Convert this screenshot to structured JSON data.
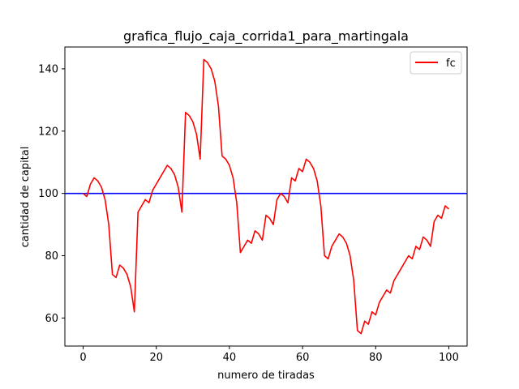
{
  "chart_data": {
    "type": "line",
    "title": "grafica_flujo_caja_corrida1_para_martingala",
    "xlabel": "numero de tiradas",
    "ylabel": "cantidad de capital",
    "xlim": [
      -5,
      105
    ],
    "ylim": [
      51,
      147
    ],
    "xticks": [
      0,
      20,
      40,
      60,
      80,
      100
    ],
    "yticks": [
      60,
      80,
      100,
      120,
      140
    ],
    "grid": false,
    "legend_position": "top-right",
    "reference_line": {
      "y": 100,
      "color": "#0000ff"
    },
    "series": [
      {
        "name": "fc",
        "color": "#ff0000",
        "x": [
          0,
          1,
          2,
          3,
          4,
          5,
          6,
          7,
          8,
          9,
          10,
          11,
          12,
          13,
          14,
          15,
          16,
          17,
          18,
          19,
          20,
          21,
          22,
          23,
          24,
          25,
          26,
          27,
          28,
          29,
          30,
          31,
          32,
          33,
          34,
          35,
          36,
          37,
          38,
          39,
          40,
          41,
          42,
          43,
          44,
          45,
          46,
          47,
          48,
          49,
          50,
          51,
          52,
          53,
          54,
          55,
          56,
          57,
          58,
          59,
          60,
          61,
          62,
          63,
          64,
          65,
          66,
          67,
          68,
          69,
          70,
          71,
          72,
          73,
          74,
          75,
          76,
          77,
          78,
          79,
          80,
          81,
          82,
          83,
          84,
          85,
          86,
          87,
          88,
          89,
          90,
          91,
          92,
          93,
          94,
          95,
          96,
          97,
          98,
          99,
          100
        ],
        "y": [
          100,
          99,
          103,
          105,
          104,
          102,
          98,
          90,
          74,
          73,
          77,
          76,
          74,
          70,
          62,
          94,
          96,
          98,
          97,
          101,
          103,
          105,
          107,
          109,
          108,
          106,
          102,
          94,
          126,
          125,
          123,
          119,
          111,
          143,
          142,
          140,
          136,
          128,
          112,
          111,
          109,
          105,
          97,
          81,
          83,
          85,
          84,
          88,
          87,
          85,
          93,
          92,
          90,
          98,
          100,
          99,
          97,
          105,
          104,
          108,
          107,
          111,
          110,
          108,
          104,
          96,
          80,
          79,
          83,
          85,
          87,
          86,
          84,
          80,
          72,
          56,
          55,
          59,
          58,
          62,
          61,
          65,
          67,
          69,
          68,
          72,
          74,
          76,
          78,
          80,
          79,
          83,
          82,
          86,
          85,
          83,
          91,
          93,
          92,
          96,
          95
        ]
      }
    ]
  }
}
